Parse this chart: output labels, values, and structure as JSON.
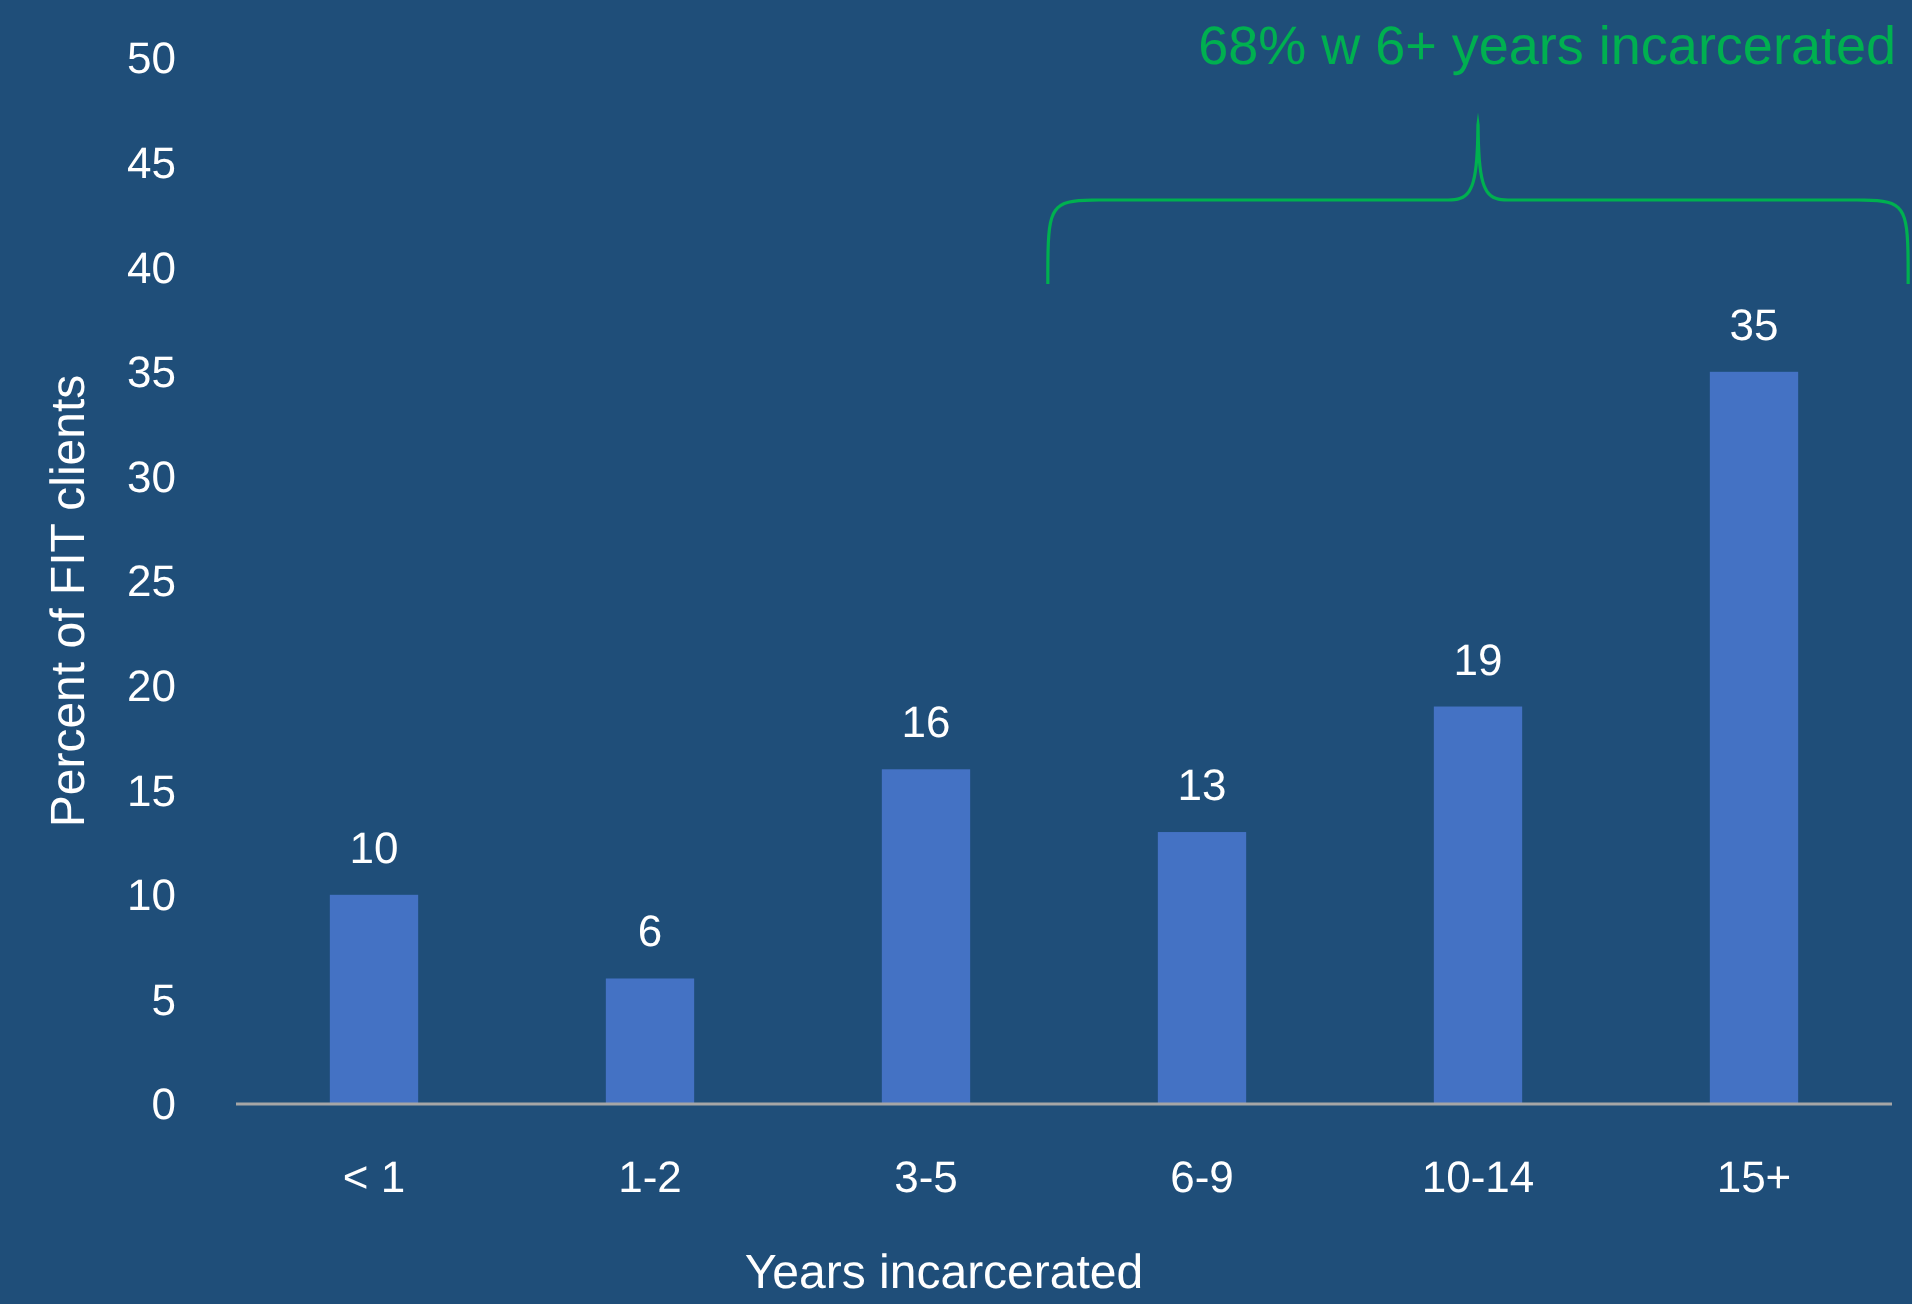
{
  "chart_data": {
    "type": "bar",
    "xlabel": "Years incarcerated",
    "ylabel": "Percent of FIT clients",
    "categories": [
      "< 1",
      "1-2",
      "3-5",
      "6-9",
      "10-14",
      "15+"
    ],
    "values": [
      10,
      6,
      16,
      13,
      19,
      35
    ],
    "color": "#4472c4",
    "ylim": [
      0,
      50
    ],
    "yticks": [
      0,
      5,
      10,
      15,
      20,
      25,
      30,
      35,
      40,
      45,
      50
    ],
    "grid": false,
    "data_labels": true,
    "annotations": [
      "68% w 6+ years incarcerated"
    ]
  }
}
